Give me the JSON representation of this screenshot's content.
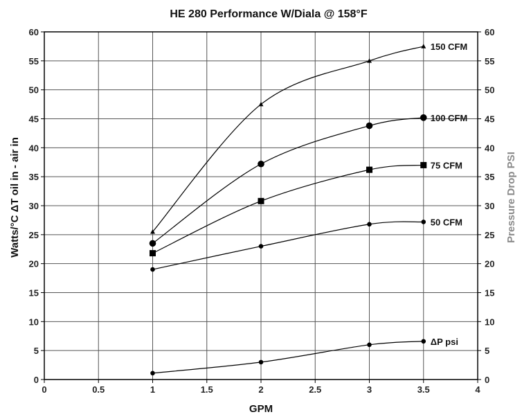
{
  "chart_data": {
    "type": "line",
    "title": "HE 280 Performance W/Diala @ 158°F",
    "xlabel": "GPM",
    "ylabel": "Watts/°C ΔT oil in - air in",
    "y2label": "Pressure Drop PSI",
    "xlim": [
      0,
      4
    ],
    "ylim": [
      0,
      60
    ],
    "y2lim": [
      0,
      60
    ],
    "xticks": [
      "0",
      "0.5",
      "1",
      "1.5",
      "2",
      "2.5",
      "3",
      "3.5",
      "4"
    ],
    "yticks": [
      "0",
      "5",
      "10",
      "15",
      "20",
      "25",
      "30",
      "35",
      "40",
      "45",
      "50",
      "55",
      "60"
    ],
    "y2ticks": [
      "0",
      "5",
      "10",
      "15",
      "20",
      "25",
      "30",
      "35",
      "40",
      "45",
      "50",
      "55",
      "60"
    ],
    "grid": true,
    "colors": {
      "line": "#000000",
      "y2label": "#8a8a8a",
      "grid": "#555555"
    },
    "series": [
      {
        "name": "150 CFM",
        "marker": "triangle",
        "x": [
          1,
          2,
          3,
          3.5
        ],
        "y": [
          25.5,
          47.5,
          55,
          57.5
        ]
      },
      {
        "name": "100 CFM",
        "marker": "circle-large",
        "x": [
          1,
          2,
          3,
          3.5
        ],
        "y": [
          23.5,
          37.2,
          43.8,
          45.2
        ]
      },
      {
        "name": "75 CFM",
        "marker": "square",
        "x": [
          1,
          2,
          3,
          3.5
        ],
        "y": [
          21.8,
          30.8,
          36.2,
          37
        ]
      },
      {
        "name": "50 CFM",
        "marker": "circle",
        "x": [
          1,
          2,
          3,
          3.5
        ],
        "y": [
          19,
          23,
          26.8,
          27.2
        ]
      },
      {
        "name": "ΔP psi",
        "marker": "circle",
        "x": [
          1,
          2,
          3,
          3.5
        ],
        "y": [
          1.1,
          3,
          6,
          6.6
        ]
      }
    ]
  }
}
